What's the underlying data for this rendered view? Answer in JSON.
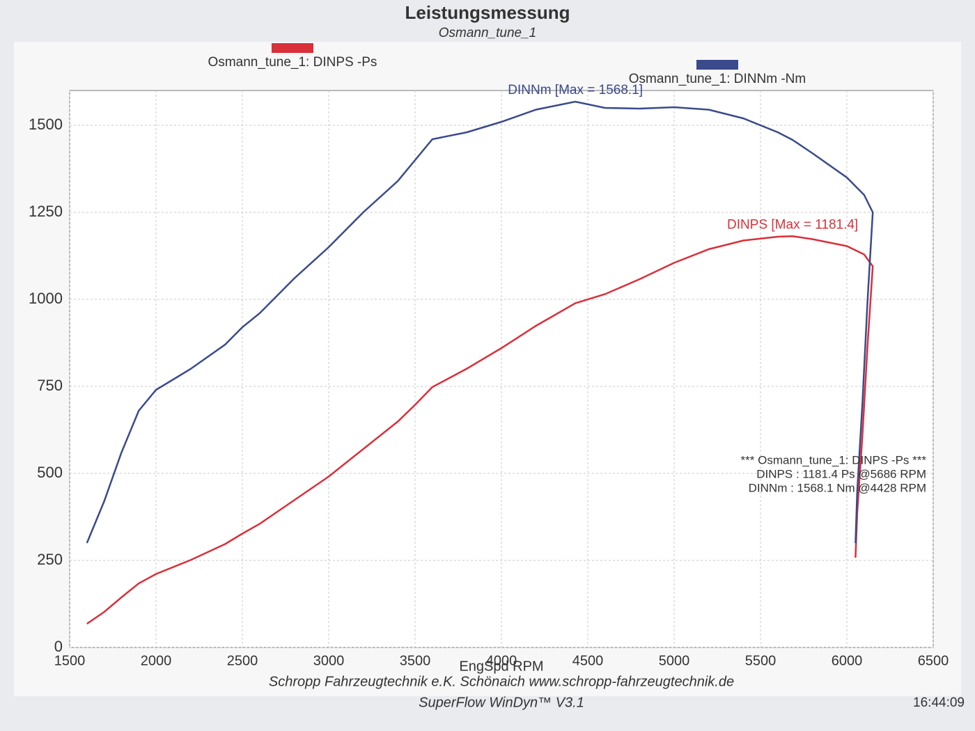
{
  "chart_data": {
    "type": "line",
    "title": "Leistungsmessung",
    "subtitle": "Osmann_tune_1",
    "x_label": "EngSpd RPM",
    "x": [
      1600,
      1700,
      1800,
      1900,
      2000,
      2200,
      2400,
      2500,
      2600,
      2800,
      3000,
      3200,
      3400,
      3500,
      3600,
      3800,
      4000,
      4200,
      4428,
      4600,
      4800,
      5000,
      5200,
      5400,
      5600,
      5686,
      5800,
      6000,
      6100,
      6150,
      6120,
      6090,
      6060,
      6050
    ],
    "series": [
      {
        "name": "Osmann_tune_1: DINPS -Ps",
        "color": "#d9303a",
        "values": [
          68,
          102,
          144,
          184,
          211,
          251,
          297,
          327,
          355,
          423,
          491,
          570,
          649,
          697,
          748,
          801,
          860,
          924,
          989,
          1015,
          1058,
          1105,
          1144,
          1169,
          1180,
          1181.4,
          1173,
          1153,
          1129,
          1095,
          871,
          607,
          387,
          258
        ]
      },
      {
        "name": "Osmann_tune_1: DINNm -Nm",
        "color": "#3a4a8c",
        "values": [
          300,
          420,
          560,
          680,
          740,
          800,
          870,
          920,
          960,
          1060,
          1150,
          1250,
          1340,
          1400,
          1460,
          1480,
          1510,
          1545,
          1568.1,
          1550,
          1548,
          1552,
          1545,
          1520,
          1480,
          1458,
          1420,
          1350,
          1300,
          1250,
          1000,
          700,
          450,
          300
        ]
      }
    ],
    "max_labels": [
      "DINPS  [Max = 1181.4]",
      "DINNm  [Max = 1568.1]"
    ],
    "summary": [
      "*** Osmann_tune_1: DINPS -Ps ***",
      "DINPS : 1181.4 Ps   @5686 RPM",
      "DINNm : 1568.1 Nm   @4428 RPM"
    ],
    "footer": [
      "Schropp Fahrzeugtechnik e.K.   Schönaich   www.schropp-fahrzeugtechnik.de",
      "SuperFlow WinDyn™ V3.1"
    ],
    "time": "16:44:09",
    "xlim": [
      1500,
      6500
    ],
    "xticks": [
      1500,
      2000,
      2500,
      3000,
      3500,
      4000,
      4500,
      5000,
      5500,
      6000,
      6500
    ],
    "ylim": [
      0,
      1600
    ],
    "yticks": [
      0,
      250,
      500,
      750,
      1000,
      1250,
      1500
    ],
    "grid": true
  }
}
